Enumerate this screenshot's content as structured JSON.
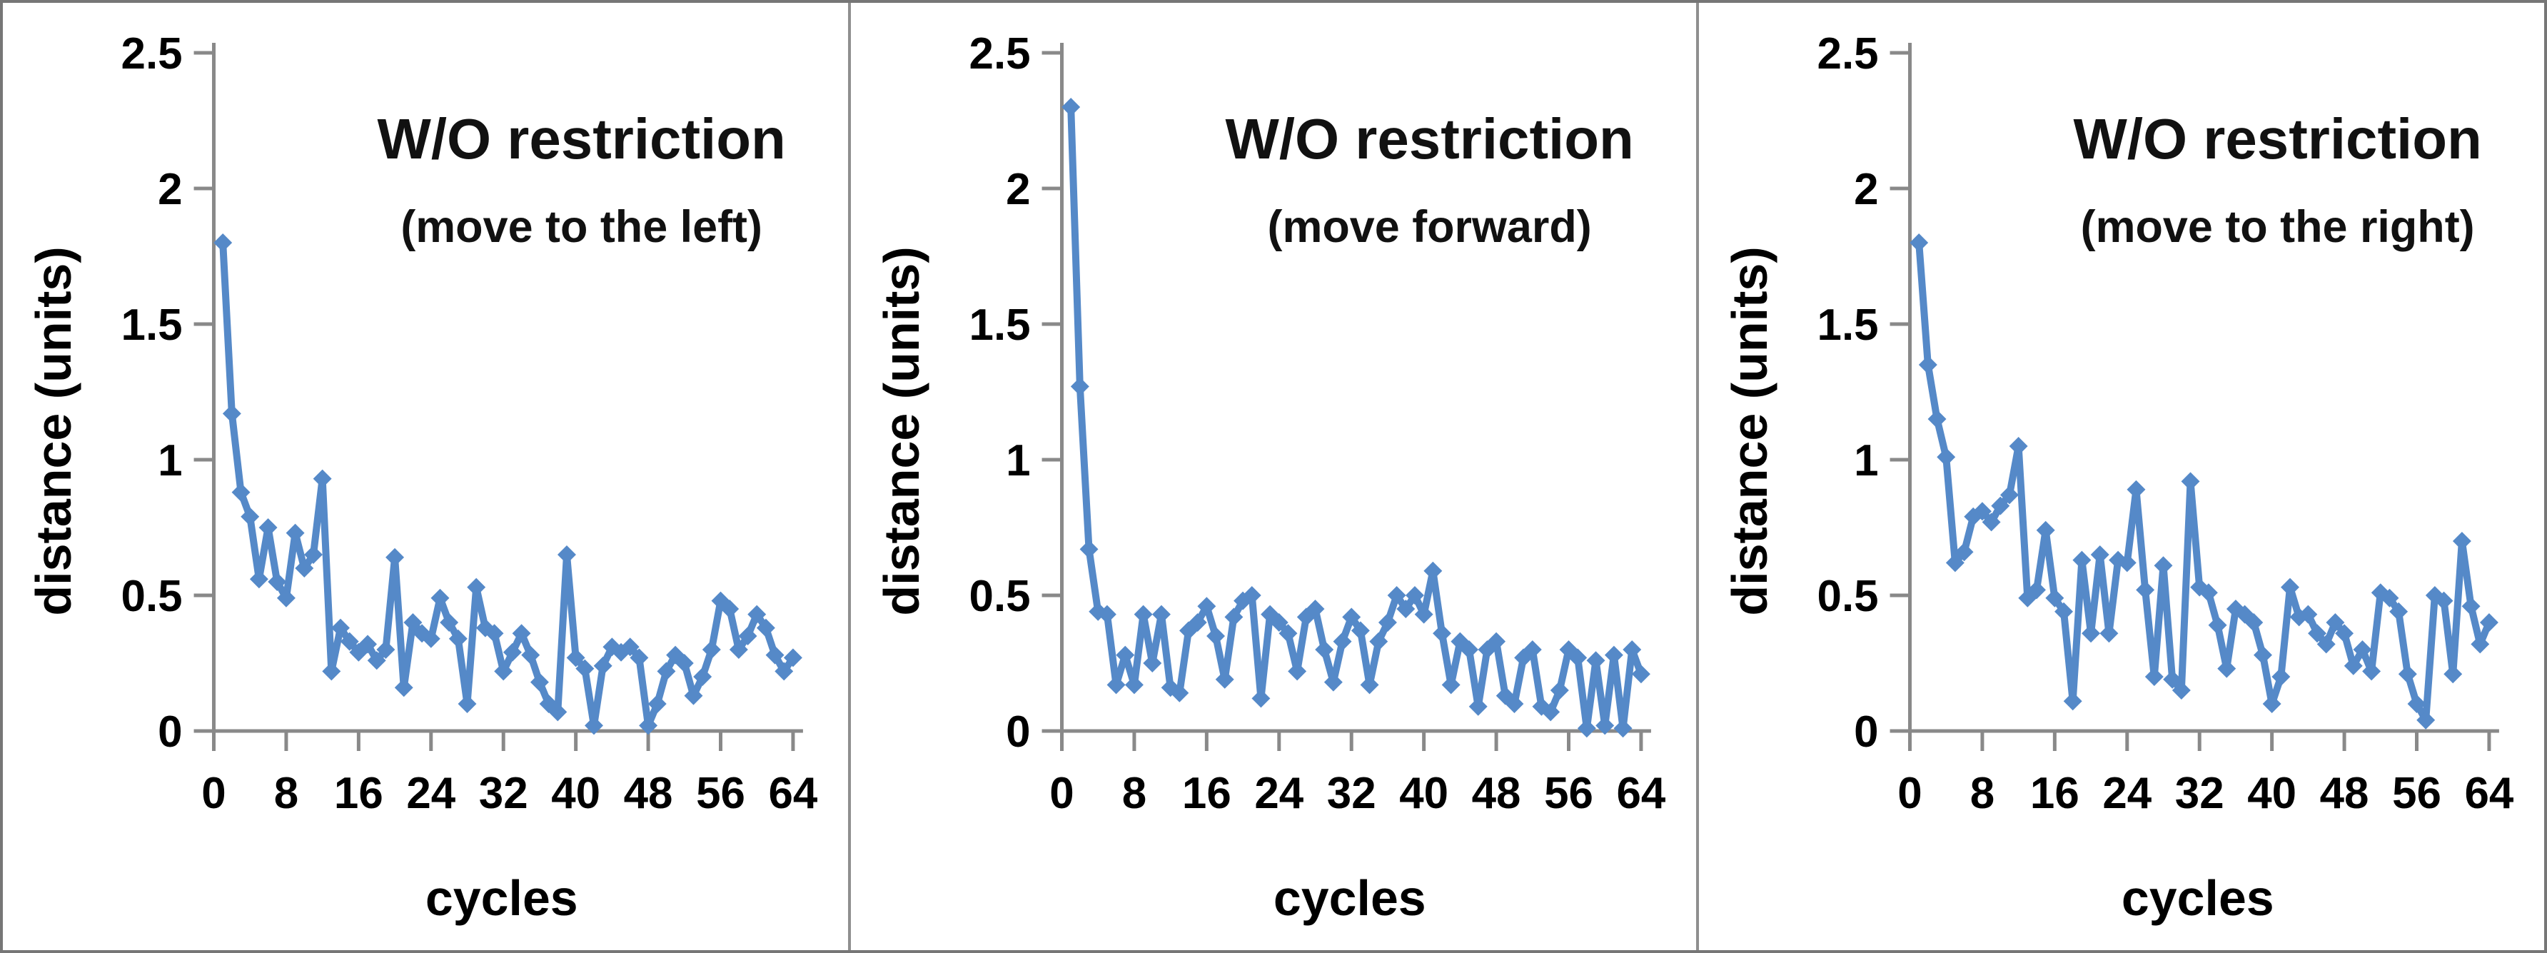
{
  "figure": {
    "kind": "three-panel line chart figure",
    "background_color": "#ffffff",
    "border_color": "#767676",
    "separator_color": "#8f8f8f"
  },
  "chart_data": [
    {
      "type": "line",
      "title": "W/O restriction",
      "subtitle": "(move to the left)",
      "xlabel": "cycles",
      "ylabel": "distance (units)",
      "x_ticks": [
        0,
        8,
        16,
        24,
        32,
        40,
        48,
        56,
        64
      ],
      "x_tick_labels": [
        "0",
        "8",
        "16",
        "24",
        "32",
        "40",
        "48",
        "56",
        "64"
      ],
      "y_ticks": [
        0,
        0.5,
        1,
        1.5,
        2,
        2.5
      ],
      "y_tick_labels": [
        "0",
        "0.5",
        "1",
        "1.5",
        "2",
        "2.5"
      ],
      "xlim": [
        0,
        65
      ],
      "ylim": [
        0,
        2.5
      ],
      "grid": false,
      "legend": "none",
      "line_color": "#5589C8",
      "axis_color": "#898989",
      "marker": "diamond",
      "x_start": 1,
      "values": [
        1.8,
        1.17,
        0.88,
        0.79,
        0.56,
        0.75,
        0.55,
        0.49,
        0.73,
        0.6,
        0.65,
        0.93,
        0.22,
        0.38,
        0.33,
        0.29,
        0.32,
        0.26,
        0.3,
        0.64,
        0.16,
        0.4,
        0.36,
        0.34,
        0.49,
        0.4,
        0.34,
        0.1,
        0.53,
        0.38,
        0.36,
        0.22,
        0.29,
        0.36,
        0.28,
        0.18,
        0.1,
        0.07,
        0.65,
        0.27,
        0.23,
        0.02,
        0.24,
        0.31,
        0.29,
        0.31,
        0.27,
        0.02,
        0.1,
        0.22,
        0.28,
        0.25,
        0.13,
        0.2,
        0.3,
        0.48,
        0.45,
        0.3,
        0.35,
        0.43,
        0.38,
        0.28,
        0.22,
        0.27
      ]
    },
    {
      "type": "line",
      "title": "W/O restriction",
      "subtitle": "(move forward)",
      "xlabel": "cycles",
      "ylabel": "distance (units)",
      "x_ticks": [
        0,
        8,
        16,
        24,
        32,
        40,
        48,
        56,
        64
      ],
      "x_tick_labels": [
        "0",
        "8",
        "16",
        "24",
        "32",
        "40",
        "48",
        "56",
        "64"
      ],
      "y_ticks": [
        0,
        0.5,
        1,
        1.5,
        2,
        2.5
      ],
      "y_tick_labels": [
        "0",
        "0.5",
        "1",
        "1.5",
        "2",
        "2.5"
      ],
      "xlim": [
        0,
        65
      ],
      "ylim": [
        0,
        2.5
      ],
      "grid": false,
      "legend": "none",
      "line_color": "#5589C8",
      "axis_color": "#898989",
      "marker": "diamond",
      "x_start": 1,
      "values": [
        2.3,
        1.27,
        0.67,
        0.44,
        0.43,
        0.17,
        0.28,
        0.17,
        0.43,
        0.25,
        0.43,
        0.16,
        0.14,
        0.37,
        0.4,
        0.46,
        0.35,
        0.19,
        0.42,
        0.48,
        0.5,
        0.12,
        0.43,
        0.4,
        0.36,
        0.22,
        0.42,
        0.45,
        0.3,
        0.18,
        0.33,
        0.42,
        0.37,
        0.17,
        0.33,
        0.4,
        0.5,
        0.45,
        0.5,
        0.43,
        0.59,
        0.36,
        0.17,
        0.33,
        0.3,
        0.09,
        0.3,
        0.33,
        0.13,
        0.1,
        0.27,
        0.3,
        0.09,
        0.07,
        0.15,
        0.3,
        0.27,
        0.01,
        0.26,
        0.02,
        0.28,
        0.01,
        0.3,
        0.21
      ]
    },
    {
      "type": "line",
      "title": "W/O restriction",
      "subtitle": "(move to the right)",
      "xlabel": "cycles",
      "ylabel": "distance (units)",
      "x_ticks": [
        0,
        8,
        16,
        24,
        32,
        40,
        48,
        56,
        64
      ],
      "x_tick_labels": [
        "0",
        "8",
        "16",
        "24",
        "32",
        "40",
        "48",
        "56",
        "64"
      ],
      "y_ticks": [
        0,
        0.5,
        1,
        1.5,
        2,
        2.5
      ],
      "y_tick_labels": [
        "0",
        "0.5",
        "1",
        "1.5",
        "2",
        "2.5"
      ],
      "xlim": [
        0,
        65
      ],
      "ylim": [
        0,
        2.5
      ],
      "grid": false,
      "legend": "none",
      "line_color": "#5589C8",
      "axis_color": "#898989",
      "marker": "diamond",
      "x_start": 1,
      "values": [
        1.8,
        1.35,
        1.15,
        1.01,
        0.62,
        0.66,
        0.79,
        0.81,
        0.77,
        0.83,
        0.87,
        1.05,
        0.49,
        0.52,
        0.74,
        0.49,
        0.44,
        0.11,
        0.63,
        0.36,
        0.65,
        0.36,
        0.63,
        0.62,
        0.89,
        0.52,
        0.2,
        0.61,
        0.19,
        0.15,
        0.92,
        0.53,
        0.51,
        0.39,
        0.23,
        0.45,
        0.43,
        0.4,
        0.28,
        0.1,
        0.2,
        0.53,
        0.42,
        0.43,
        0.36,
        0.32,
        0.4,
        0.36,
        0.24,
        0.3,
        0.22,
        0.51,
        0.49,
        0.44,
        0.21,
        0.1,
        0.04,
        0.5,
        0.48,
        0.21,
        0.7,
        0.46,
        0.32,
        0.4
      ]
    }
  ]
}
